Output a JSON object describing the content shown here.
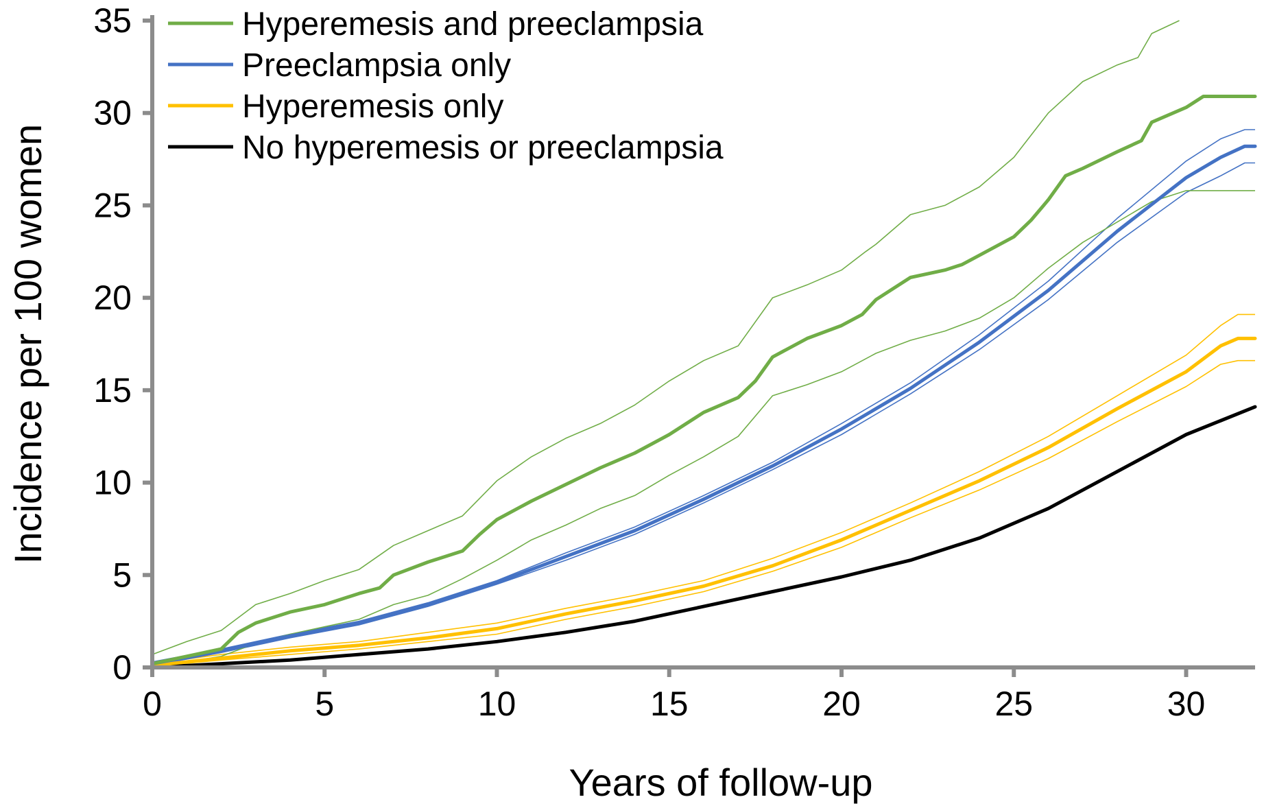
{
  "chart_data": {
    "type": "line",
    "xlabel": "Years of follow-up",
    "ylabel": "Incidence per 100 women",
    "xlim": [
      0,
      32
    ],
    "ylim": [
      0,
      35
    ],
    "xticks": [
      0,
      5,
      10,
      15,
      20,
      25,
      30
    ],
    "yticks": [
      0,
      5,
      10,
      15,
      20,
      25,
      30,
      35
    ],
    "grid": false,
    "legend_position": "top-left",
    "series": [
      {
        "name": "Hyperemesis and preeclampsia",
        "color": "#70AD47",
        "points": [
          [
            0,
            0.2
          ],
          [
            1,
            0.6
          ],
          [
            2,
            1.0
          ],
          [
            2.5,
            1.9
          ],
          [
            3,
            2.4
          ],
          [
            4,
            3.0
          ],
          [
            5,
            3.4
          ],
          [
            6,
            4.0
          ],
          [
            6.6,
            4.3
          ],
          [
            7,
            5.0
          ],
          [
            8,
            5.7
          ],
          [
            9,
            6.3
          ],
          [
            9.5,
            7.2
          ],
          [
            10,
            8.0
          ],
          [
            11,
            9.0
          ],
          [
            12,
            9.9
          ],
          [
            13,
            10.8
          ],
          [
            14,
            11.6
          ],
          [
            15,
            12.6
          ],
          [
            16,
            13.8
          ],
          [
            17,
            14.6
          ],
          [
            17.5,
            15.5
          ],
          [
            18,
            16.8
          ],
          [
            19,
            17.8
          ],
          [
            20,
            18.5
          ],
          [
            20.6,
            19.1
          ],
          [
            21,
            19.9
          ],
          [
            22,
            21.1
          ],
          [
            23,
            21.5
          ],
          [
            23.5,
            21.8
          ],
          [
            24,
            22.3
          ],
          [
            25,
            23.3
          ],
          [
            25.5,
            24.2
          ],
          [
            26,
            25.3
          ],
          [
            26.5,
            26.6
          ],
          [
            27,
            27.0
          ],
          [
            28,
            27.9
          ],
          [
            28.7,
            28.5
          ],
          [
            29,
            29.5
          ],
          [
            30,
            30.3
          ],
          [
            30.5,
            30.9
          ],
          [
            32,
            30.9
          ]
        ],
        "ci_lower": [
          [
            0,
            0.1
          ],
          [
            1,
            0.3
          ],
          [
            2,
            0.6
          ],
          [
            3,
            1.3
          ],
          [
            4,
            1.8
          ],
          [
            5,
            2.2
          ],
          [
            6,
            2.6
          ],
          [
            7,
            3.4
          ],
          [
            8,
            3.9
          ],
          [
            9,
            4.8
          ],
          [
            10,
            5.8
          ],
          [
            11,
            6.9
          ],
          [
            12,
            7.7
          ],
          [
            13,
            8.6
          ],
          [
            14,
            9.3
          ],
          [
            15,
            10.4
          ],
          [
            16,
            11.4
          ],
          [
            17,
            12.5
          ],
          [
            18,
            14.7
          ],
          [
            19,
            15.3
          ],
          [
            20,
            16.0
          ],
          [
            21,
            17.0
          ],
          [
            22,
            17.7
          ],
          [
            23,
            18.2
          ],
          [
            24,
            18.9
          ],
          [
            25,
            20.0
          ],
          [
            26,
            21.6
          ],
          [
            27,
            23.0
          ],
          [
            28,
            24.1
          ],
          [
            29,
            25.2
          ],
          [
            30,
            25.8
          ],
          [
            32,
            25.8
          ]
        ],
        "ci_upper": [
          [
            0,
            0.7
          ],
          [
            1,
            1.4
          ],
          [
            2,
            2.0
          ],
          [
            3,
            3.4
          ],
          [
            4,
            4.0
          ],
          [
            5,
            4.7
          ],
          [
            6,
            5.3
          ],
          [
            7,
            6.6
          ],
          [
            8,
            7.4
          ],
          [
            9,
            8.2
          ],
          [
            10,
            10.1
          ],
          [
            11,
            11.4
          ],
          [
            12,
            12.4
          ],
          [
            13,
            13.2
          ],
          [
            14,
            14.2
          ],
          [
            15,
            15.5
          ],
          [
            16,
            16.6
          ],
          [
            17,
            17.4
          ],
          [
            18,
            20.0
          ],
          [
            19,
            20.7
          ],
          [
            20,
            21.5
          ],
          [
            20.7,
            22.5
          ],
          [
            21,
            22.9
          ],
          [
            22,
            24.5
          ],
          [
            23,
            25.0
          ],
          [
            24,
            26.0
          ],
          [
            25,
            27.6
          ],
          [
            26,
            30.0
          ],
          [
            27,
            31.7
          ],
          [
            28,
            32.6
          ],
          [
            28.6,
            33.0
          ],
          [
            29,
            34.3
          ],
          [
            29.8,
            35.0
          ]
        ]
      },
      {
        "name": "Preeclampsia only",
        "color": "#4472C4",
        "points": [
          [
            0,
            0.2
          ],
          [
            2,
            0.9
          ],
          [
            4,
            1.7
          ],
          [
            6,
            2.4
          ],
          [
            8,
            3.4
          ],
          [
            10,
            4.6
          ],
          [
            12,
            6.0
          ],
          [
            14,
            7.4
          ],
          [
            16,
            9.1
          ],
          [
            18,
            10.9
          ],
          [
            20,
            12.9
          ],
          [
            22,
            15.1
          ],
          [
            24,
            17.6
          ],
          [
            26,
            20.4
          ],
          [
            28,
            23.6
          ],
          [
            30,
            26.5
          ],
          [
            31,
            27.6
          ],
          [
            31.7,
            28.2
          ],
          [
            32,
            28.2
          ]
        ],
        "ci_lower": [
          [
            0,
            0.1
          ],
          [
            2,
            0.8
          ],
          [
            4,
            1.6
          ],
          [
            6,
            2.3
          ],
          [
            8,
            3.3
          ],
          [
            10,
            4.5
          ],
          [
            12,
            5.8
          ],
          [
            14,
            7.2
          ],
          [
            16,
            8.9
          ],
          [
            18,
            10.7
          ],
          [
            20,
            12.6
          ],
          [
            22,
            14.8
          ],
          [
            24,
            17.2
          ],
          [
            26,
            19.9
          ],
          [
            28,
            23.0
          ],
          [
            30,
            25.7
          ],
          [
            31,
            26.6
          ],
          [
            31.7,
            27.3
          ],
          [
            32,
            27.3
          ]
        ],
        "ci_upper": [
          [
            0,
            0.3
          ],
          [
            2,
            1.0
          ],
          [
            4,
            1.8
          ],
          [
            6,
            2.5
          ],
          [
            8,
            3.5
          ],
          [
            10,
            4.7
          ],
          [
            12,
            6.2
          ],
          [
            14,
            7.6
          ],
          [
            16,
            9.3
          ],
          [
            18,
            11.1
          ],
          [
            20,
            13.2
          ],
          [
            22,
            15.4
          ],
          [
            24,
            18.0
          ],
          [
            26,
            20.9
          ],
          [
            28,
            24.3
          ],
          [
            30,
            27.4
          ],
          [
            31,
            28.6
          ],
          [
            31.7,
            29.1
          ],
          [
            32,
            29.1
          ]
        ]
      },
      {
        "name": "Hyperemesis only",
        "color": "#FFC000",
        "points": [
          [
            0,
            0.1
          ],
          [
            2,
            0.5
          ],
          [
            4,
            0.9
          ],
          [
            6,
            1.2
          ],
          [
            8,
            1.6
          ],
          [
            10,
            2.1
          ],
          [
            12,
            2.9
          ],
          [
            14,
            3.6
          ],
          [
            16,
            4.4
          ],
          [
            18,
            5.5
          ],
          [
            20,
            6.9
          ],
          [
            22,
            8.5
          ],
          [
            24,
            10.1
          ],
          [
            26,
            11.9
          ],
          [
            28,
            14.0
          ],
          [
            30,
            16.0
          ],
          [
            31,
            17.4
          ],
          [
            31.5,
            17.8
          ],
          [
            32,
            17.8
          ]
        ],
        "ci_lower": [
          [
            0,
            0.05
          ],
          [
            2,
            0.4
          ],
          [
            4,
            0.7
          ],
          [
            6,
            1.0
          ],
          [
            8,
            1.4
          ],
          [
            10,
            1.8
          ],
          [
            12,
            2.6
          ],
          [
            14,
            3.3
          ],
          [
            16,
            4.1
          ],
          [
            18,
            5.2
          ],
          [
            20,
            6.5
          ],
          [
            22,
            8.1
          ],
          [
            24,
            9.6
          ],
          [
            26,
            11.3
          ],
          [
            28,
            13.3
          ],
          [
            30,
            15.2
          ],
          [
            31,
            16.4
          ],
          [
            31.5,
            16.6
          ],
          [
            32,
            16.6
          ]
        ],
        "ci_upper": [
          [
            0,
            0.2
          ],
          [
            2,
            0.7
          ],
          [
            4,
            1.1
          ],
          [
            6,
            1.4
          ],
          [
            8,
            1.9
          ],
          [
            10,
            2.4
          ],
          [
            12,
            3.2
          ],
          [
            14,
            3.9
          ],
          [
            16,
            4.7
          ],
          [
            18,
            5.9
          ],
          [
            20,
            7.3
          ],
          [
            22,
            8.9
          ],
          [
            24,
            10.6
          ],
          [
            26,
            12.5
          ],
          [
            28,
            14.7
          ],
          [
            30,
            16.9
          ],
          [
            31,
            18.5
          ],
          [
            31.5,
            19.1
          ],
          [
            32,
            19.1
          ]
        ]
      },
      {
        "name": "No hyperemesis or preeclampsia",
        "color": "#000000",
        "points": [
          [
            0,
            0
          ],
          [
            2,
            0.2
          ],
          [
            4,
            0.4
          ],
          [
            6,
            0.7
          ],
          [
            8,
            1.0
          ],
          [
            10,
            1.4
          ],
          [
            12,
            1.9
          ],
          [
            14,
            2.5
          ],
          [
            16,
            3.3
          ],
          [
            18,
            4.1
          ],
          [
            20,
            4.9
          ],
          [
            22,
            5.8
          ],
          [
            24,
            7.0
          ],
          [
            26,
            8.6
          ],
          [
            28,
            10.6
          ],
          [
            30,
            12.6
          ],
          [
            32,
            14.1
          ]
        ]
      }
    ]
  }
}
